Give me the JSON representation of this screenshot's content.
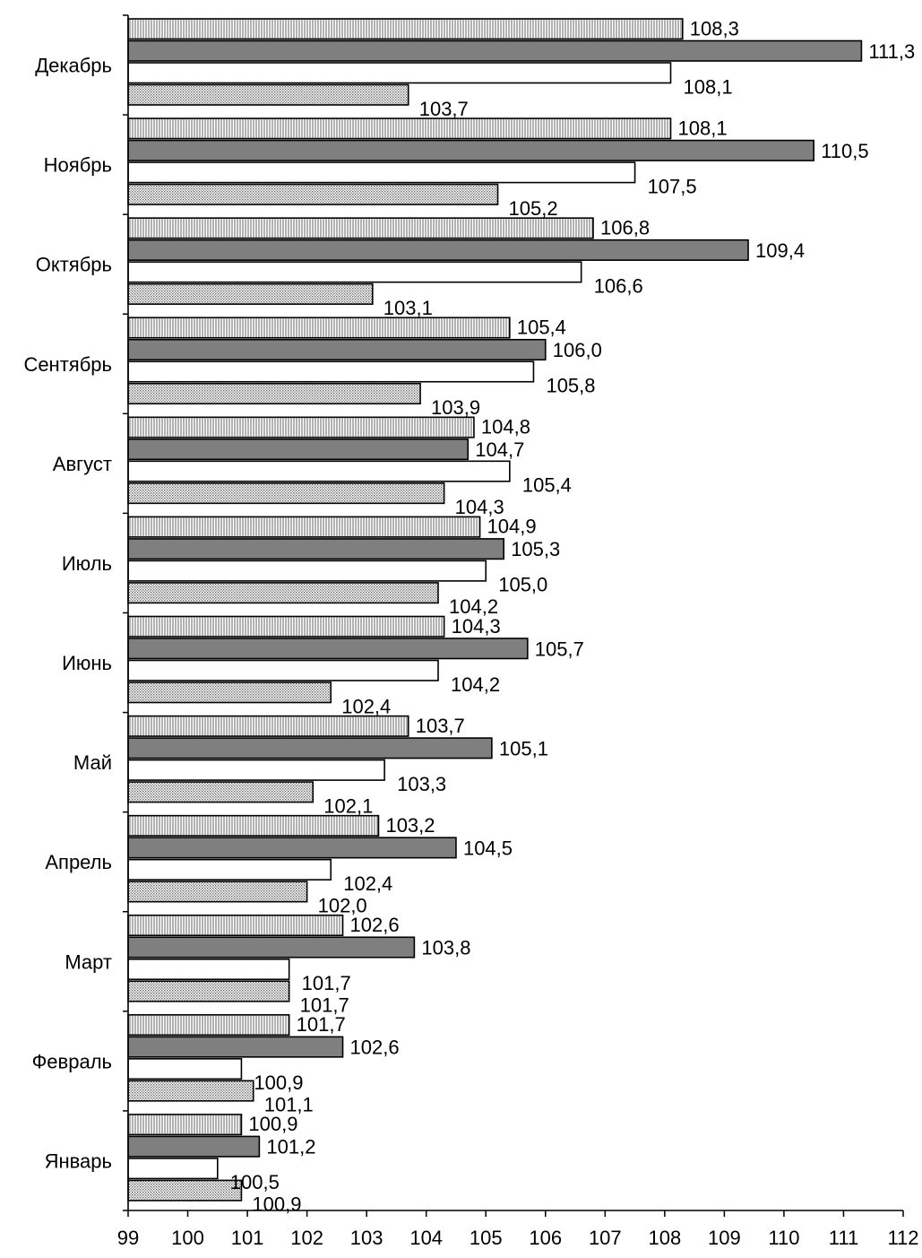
{
  "chart_data": {
    "type": "bar",
    "orientation": "horizontal",
    "categories": [
      "Январь",
      "Февраль",
      "Март",
      "Апрель",
      "Май",
      "Июнь",
      "Июль",
      "Август",
      "Сентябрь",
      "Октябрь",
      "Ноябрь",
      "Декабрь"
    ],
    "series": [
      {
        "pattern": "vertical-hatch",
        "fill": "#ffffff",
        "stroke": "#000000",
        "values": [
          100.9,
          101.7,
          102.6,
          103.2,
          103.7,
          104.3,
          104.9,
          104.8,
          105.4,
          106.8,
          108.1,
          108.3
        ],
        "labels": [
          "100,9",
          "101,7",
          "102,6",
          "103,2",
          "103,7",
          "104,3",
          "104,9",
          "104,8",
          "105,4",
          "106,8",
          "108,1",
          "108,3"
        ]
      },
      {
        "pattern": "solid",
        "fill": "#7f7f7f",
        "stroke": "#000000",
        "values": [
          101.2,
          102.6,
          103.8,
          104.5,
          105.1,
          105.7,
          105.3,
          104.7,
          106.0,
          109.4,
          110.5,
          111.3
        ],
        "labels": [
          "101,2",
          "102,6",
          "103,8",
          "104,5",
          "105,1",
          "105,7",
          "105,3",
          "104,7",
          "106,0",
          "109,4",
          "110,5",
          "111,3"
        ]
      },
      {
        "pattern": "none",
        "fill": "#ffffff",
        "stroke": "#000000",
        "values": [
          100.5,
          100.9,
          101.7,
          102.4,
          103.3,
          104.2,
          105.0,
          105.4,
          105.8,
          106.6,
          107.5,
          108.1
        ],
        "labels": [
          "100,5",
          "100,9",
          "101,7",
          "102,4",
          "103,3",
          "104,2",
          "105,0",
          "105,4",
          "105,8",
          "106,6",
          "107,5",
          "108,1"
        ]
      },
      {
        "pattern": "dot-hatch",
        "fill": "#d9d9d9",
        "stroke": "#000000",
        "values": [
          100.9,
          101.1,
          101.7,
          102.0,
          102.1,
          102.4,
          104.2,
          104.3,
          103.9,
          103.1,
          105.2,
          103.7
        ],
        "labels": [
          "100,9",
          "101,1",
          "101,7",
          "102,0",
          "102,1",
          "102,4",
          "104,2",
          "104,3",
          "103,9",
          "103,1",
          "105,2",
          "103,7"
        ]
      }
    ],
    "xlim": [
      99,
      112
    ],
    "xticks": [
      "99",
      "100",
      "101",
      "102",
      "103",
      "104",
      "105",
      "106",
      "107",
      "108",
      "109",
      "110",
      "111",
      "112"
    ],
    "grid": false,
    "legend": "none"
  }
}
